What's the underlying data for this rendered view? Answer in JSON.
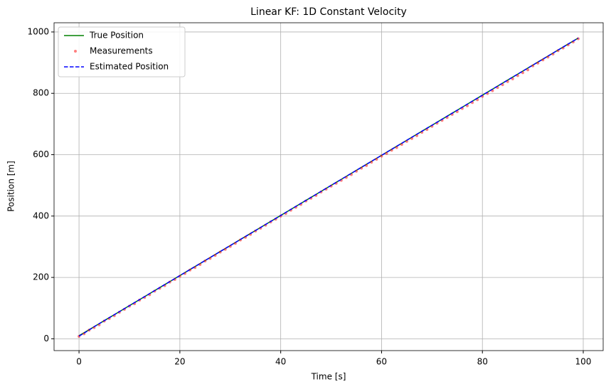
{
  "chart_data": {
    "type": "line",
    "title": "Linear KF: 1D Constant Velocity",
    "x_label": "Time [s]",
    "y_label": "Position [m]",
    "x": [
      0,
      1,
      2,
      3,
      4,
      5,
      6,
      7,
      8,
      9,
      10,
      11,
      12,
      13,
      14,
      15,
      16,
      17,
      18,
      19,
      20,
      21,
      22,
      23,
      24,
      25,
      26,
      27,
      28,
      29,
      30,
      31,
      32,
      33,
      34,
      35,
      36,
      37,
      38,
      39,
      40,
      41,
      42,
      43,
      44,
      45,
      46,
      47,
      48,
      49,
      50,
      51,
      52,
      53,
      54,
      55,
      56,
      57,
      58,
      59,
      60,
      61,
      62,
      63,
      64,
      65,
      66,
      67,
      68,
      69,
      70,
      71,
      72,
      73,
      74,
      75,
      76,
      77,
      78,
      79,
      80,
      81,
      82,
      83,
      84,
      85,
      86,
      87,
      88,
      89,
      90,
      91,
      92,
      93,
      94,
      95,
      96,
      97,
      98,
      99
    ],
    "series": [
      {
        "name": "True Position",
        "color": "#008000",
        "kind": "line",
        "dashed": false,
        "values": [
          10,
          19.8,
          29.6,
          39.4,
          49.2,
          59,
          68.8,
          78.6,
          88.4,
          98.2,
          108,
          117.8,
          127.6,
          137.4,
          147.2,
          157,
          166.8,
          176.6,
          186.4,
          196.2,
          206,
          215.8,
          225.6,
          235.4,
          245.2,
          255,
          264.8,
          274.6,
          284.4,
          294.2,
          304,
          313.8,
          323.6,
          333.4,
          343.2,
          353,
          362.8,
          372.6,
          382.4,
          392.2,
          402,
          411.8,
          421.6,
          431.4,
          441.2,
          451,
          460.8,
          470.6,
          480.4,
          490.2,
          500,
          509.8,
          519.6,
          529.4,
          539.2,
          549,
          558.8,
          568.6,
          578.4,
          588.2,
          598,
          607.8,
          617.6,
          627.4,
          637.2,
          647,
          656.8,
          666.6,
          676.4,
          686.2,
          696,
          705.8,
          715.6,
          725.4,
          735.2,
          745,
          754.8,
          764.6,
          774.4,
          784.2,
          794,
          803.8,
          813.6,
          823.4,
          833.2,
          843,
          852.8,
          862.6,
          872.4,
          882.2,
          892,
          901.8,
          911.6,
          921.4,
          931.2,
          941,
          950.8,
          960.6,
          970.4,
          980.2
        ]
      },
      {
        "name": "Measurements",
        "color": "#ff0000",
        "kind": "scatter",
        "dashed": false,
        "values": [
          7.9,
          16.3,
          28.2,
          36.5,
          45.4,
          57.8,
          66.2,
          75.5,
          86.5,
          95.8,
          106.4,
          114.1,
          126.0,
          134.8,
          143.6,
          155.3,
          164.5,
          173.2,
          184.9,
          193.3,
          203.7,
          212.6,
          223.9,
          232.1,
          242.0,
          253.4,
          261.9,
          271.8,
          282.6,
          291.5,
          301.2,
          310.9,
          321.8,
          330.7,
          340.3,
          351.1,
          360.4,
          370.2,
          380.8,
          389.6,
          399.8,
          408.3,
          419.1,
          428.6,
          437.9,
          449.0,
          458.2,
          467.5,
          478.3,
          487.7,
          497.6,
          506.9,
          516.4,
          526.0,
          535.2,
          546.3,
          556.1,
          564.8,
          575.5,
          584.9,
          595.3,
          604.2,
          614.5,
          623.3,
          633.4,
          643.6,
          652.9,
          662.1,
          672.8,
          682.0,
          692.4,
          702.7,
          711.8,
          721.1,
          731.3,
          740.2,
          750.7,
          759.4,
          769.9,
          779.1,
          790.1,
          799.4,
          808.7,
          818.9,
          828.0,
          838.3,
          847.2,
          857.6,
          867.1,
          876.5,
          889.5,
          898.6,
          909.0,
          918.3,
          928.1,
          938.9,
          947.7,
          957.8,
          967.4,
          977.9
        ]
      },
      {
        "name": "Estimated Position",
        "color": "#0000ff",
        "kind": "line",
        "dashed": true,
        "values": [
          8.9,
          18.2,
          28.6,
          39.4,
          49.2,
          59,
          68.8,
          78.6,
          88.4,
          98.2,
          108,
          117.8,
          127.6,
          137.4,
          147.2,
          157,
          166.8,
          176.6,
          186.4,
          196.2,
          206,
          215.8,
          225.6,
          235.4,
          245.2,
          255,
          264.8,
          274.6,
          284.4,
          294.2,
          304,
          313.8,
          323.6,
          333.4,
          343.2,
          353,
          362.8,
          372.6,
          382.4,
          392.2,
          402,
          411.8,
          421.6,
          431.4,
          441.2,
          451,
          460.8,
          470.6,
          480.4,
          490.2,
          500,
          509.8,
          519.6,
          529.4,
          539.2,
          549,
          558.8,
          568.6,
          578.4,
          588.2,
          598,
          607.8,
          617.6,
          627.4,
          637.2,
          647,
          656.8,
          666.6,
          676.4,
          686.2,
          696,
          705.8,
          715.6,
          725.4,
          735.2,
          745,
          754.8,
          764.6,
          774.4,
          784.2,
          794,
          803.8,
          813.6,
          823.4,
          833.2,
          843,
          852.8,
          862.6,
          872.4,
          882.2,
          892,
          901.8,
          911.6,
          921.4,
          931.2,
          941,
          950.8,
          960.6,
          970.4,
          980.2
        ]
      }
    ],
    "xlim": [
      -4.95,
      103.95
    ],
    "xticks": [
      0,
      20,
      40,
      60,
      80,
      100
    ],
    "ylim": [
      -38.5,
      1030
    ],
    "yticks": [
      0,
      200,
      400,
      600,
      800,
      1000
    ],
    "grid": true,
    "legend": "upper-left"
  }
}
